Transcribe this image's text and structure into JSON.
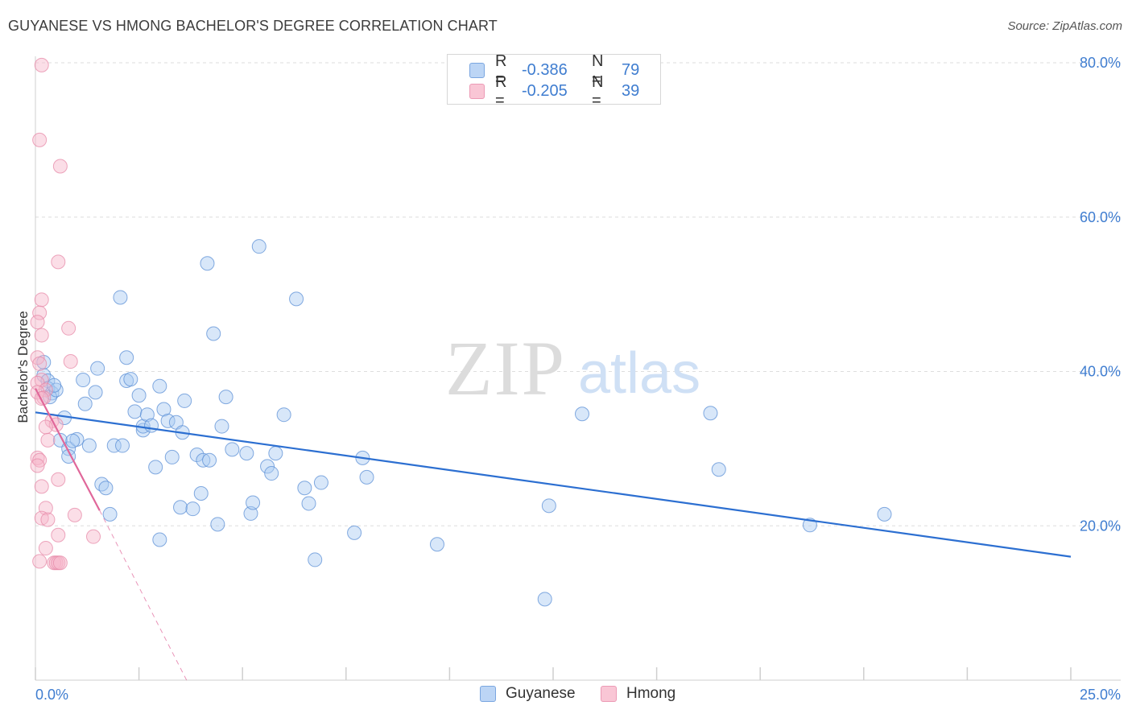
{
  "title": "GUYANESE VS HMONG BACHELOR'S DEGREE CORRELATION CHART",
  "source": "Source: ZipAtlas.com",
  "watermark": {
    "zip": "ZIP",
    "atlas": "atlas"
  },
  "legend": {
    "r_label": "R =",
    "n_label": "N =",
    "rows": [
      {
        "series": "Guyanese",
        "r": "-0.386",
        "n": "79"
      },
      {
        "series": "Hmong",
        "r": "-0.205",
        "n": "39"
      }
    ]
  },
  "colors": {
    "guyanese_fill": "#a9c9f2",
    "guyanese_stroke": "#5b8fd6",
    "guyanese_line": "#2c6fd1",
    "hmong_fill": "#f7b6c9",
    "hmong_stroke": "#e78aa8",
    "hmong_line": "#e0679a",
    "tick_text": "#3f7dd0",
    "grid": "#dedede"
  },
  "chart_data": {
    "type": "scatter",
    "title": "GUYANESE VS HMONG BACHELOR'S DEGREE CORRELATION CHART",
    "xlabel": "",
    "ylabel": "Bachelor's Degree",
    "xlim": [
      0,
      25
    ],
    "ylim": [
      0,
      80
    ],
    "x_tick_labels": [
      "0.0%",
      "25.0%"
    ],
    "y_ticks": [
      20,
      40,
      60,
      80
    ],
    "y_tick_labels": [
      "20.0%",
      "40.0%",
      "60.0%",
      "80.0%"
    ],
    "grid": true,
    "legend_position": "top-center",
    "series": [
      {
        "name": "Guyanese",
        "trend": {
          "x0": 0.0,
          "y0": 34.7,
          "x1": 25.0,
          "y1": 16.0
        },
        "points": [
          [
            0.2,
            41.2
          ],
          [
            0.2,
            39.5
          ],
          [
            0.3,
            38.8
          ],
          [
            0.3,
            37.8
          ],
          [
            0.4,
            37.2
          ],
          [
            0.35,
            36.7
          ],
          [
            0.5,
            37.6
          ],
          [
            0.45,
            38.2
          ],
          [
            0.7,
            34.0
          ],
          [
            0.6,
            31.1
          ],
          [
            0.8,
            30.0
          ],
          [
            0.8,
            29.0
          ],
          [
            1.0,
            31.2
          ],
          [
            0.9,
            31.0
          ],
          [
            1.3,
            30.4
          ],
          [
            1.2,
            35.8
          ],
          [
            1.15,
            38.9
          ],
          [
            1.45,
            37.3
          ],
          [
            1.5,
            40.4
          ],
          [
            1.6,
            25.4
          ],
          [
            1.7,
            24.9
          ],
          [
            1.8,
            21.5
          ],
          [
            1.9,
            30.4
          ],
          [
            2.1,
            30.4
          ],
          [
            2.2,
            38.8
          ],
          [
            2.05,
            49.6
          ],
          [
            2.2,
            41.8
          ],
          [
            2.3,
            39.0
          ],
          [
            2.4,
            34.8
          ],
          [
            2.5,
            36.9
          ],
          [
            2.6,
            32.4
          ],
          [
            2.6,
            32.9
          ],
          [
            2.7,
            34.4
          ],
          [
            2.8,
            33.0
          ],
          [
            2.9,
            27.6
          ],
          [
            3.0,
            38.1
          ],
          [
            3.1,
            35.1
          ],
          [
            3.2,
            33.6
          ],
          [
            3.3,
            28.9
          ],
          [
            3.4,
            33.4
          ],
          [
            3.5,
            22.4
          ],
          [
            3.55,
            32.1
          ],
          [
            3.6,
            36.2
          ],
          [
            3.8,
            22.2
          ],
          [
            3.9,
            29.2
          ],
          [
            4.0,
            24.2
          ],
          [
            4.05,
            28.5
          ],
          [
            4.15,
            54.0
          ],
          [
            4.2,
            28.5
          ],
          [
            4.3,
            44.9
          ],
          [
            4.4,
            20.2
          ],
          [
            4.5,
            32.9
          ],
          [
            4.6,
            36.7
          ],
          [
            4.75,
            29.9
          ],
          [
            3.0,
            18.2
          ],
          [
            5.1,
            29.4
          ],
          [
            5.2,
            21.6
          ],
          [
            5.25,
            23.0
          ],
          [
            5.4,
            56.2
          ],
          [
            5.6,
            27.7
          ],
          [
            5.7,
            26.8
          ],
          [
            5.8,
            29.4
          ],
          [
            6.0,
            34.4
          ],
          [
            6.3,
            49.4
          ],
          [
            6.5,
            24.9
          ],
          [
            6.6,
            22.9
          ],
          [
            6.75,
            15.6
          ],
          [
            6.9,
            25.6
          ],
          [
            7.7,
            19.1
          ],
          [
            7.9,
            28.8
          ],
          [
            8.0,
            26.3
          ],
          [
            9.7,
            17.6
          ],
          [
            12.3,
            10.5
          ],
          [
            12.4,
            22.6
          ],
          [
            13.2,
            34.5
          ],
          [
            16.3,
            34.6
          ],
          [
            16.5,
            27.3
          ],
          [
            18.7,
            20.1
          ],
          [
            20.5,
            21.5
          ]
        ]
      },
      {
        "name": "Hmong",
        "trend": {
          "x0": 0.0,
          "y0": 37.8,
          "x1": 1.55,
          "y1": 22.0
        },
        "trend_dashed_end": {
          "x": 3.65,
          "y": 0.0
        },
        "points": [
          [
            0.15,
            79.7
          ],
          [
            0.1,
            70.0
          ],
          [
            0.6,
            66.6
          ],
          [
            0.55,
            54.2
          ],
          [
            0.15,
            49.3
          ],
          [
            0.1,
            47.6
          ],
          [
            0.05,
            46.4
          ],
          [
            0.15,
            44.7
          ],
          [
            0.8,
            45.6
          ],
          [
            0.85,
            41.3
          ],
          [
            0.05,
            41.8
          ],
          [
            0.1,
            41.0
          ],
          [
            0.15,
            38.9
          ],
          [
            0.05,
            38.5
          ],
          [
            0.25,
            37.6
          ],
          [
            0.05,
            37.3
          ],
          [
            0.2,
            36.6
          ],
          [
            0.15,
            36.5
          ],
          [
            0.4,
            33.6
          ],
          [
            0.5,
            33.1
          ],
          [
            0.25,
            32.8
          ],
          [
            0.3,
            31.1
          ],
          [
            0.05,
            28.8
          ],
          [
            0.1,
            28.5
          ],
          [
            0.05,
            27.8
          ],
          [
            0.55,
            26.0
          ],
          [
            0.15,
            25.1
          ],
          [
            0.25,
            22.3
          ],
          [
            0.95,
            21.4
          ],
          [
            0.15,
            21.0
          ],
          [
            0.3,
            20.8
          ],
          [
            0.55,
            18.8
          ],
          [
            1.4,
            18.6
          ],
          [
            0.25,
            17.1
          ],
          [
            0.1,
            15.4
          ],
          [
            0.45,
            15.2
          ],
          [
            0.5,
            15.2
          ],
          [
            0.55,
            15.2
          ],
          [
            0.6,
            15.2
          ]
        ]
      }
    ]
  }
}
